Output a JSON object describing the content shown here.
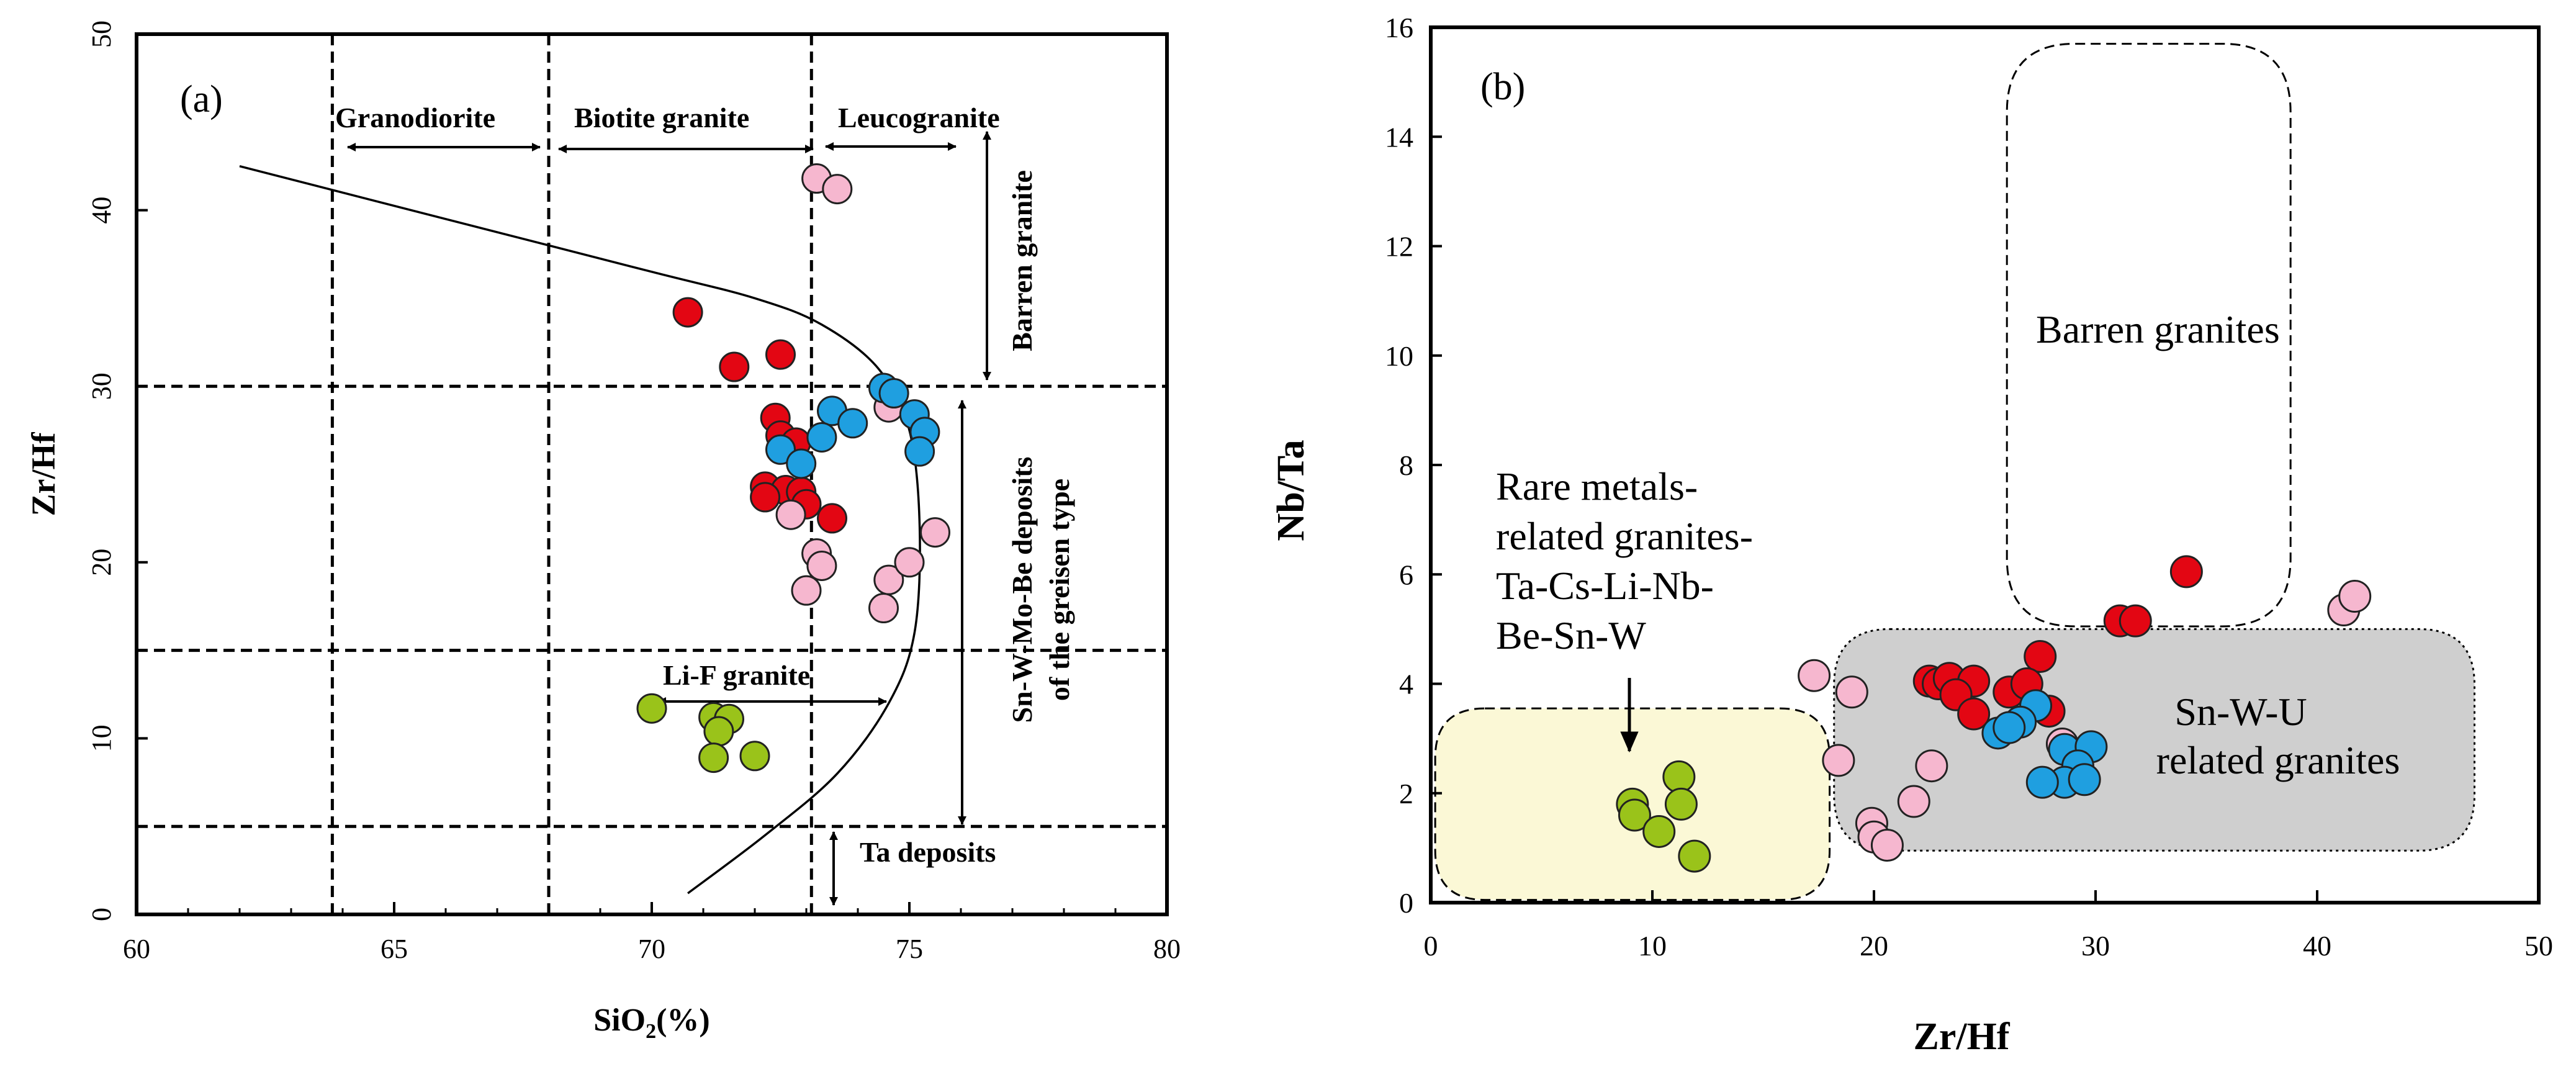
{
  "colors": {
    "red": "#e30613",
    "pink": "#f6b7cf",
    "blue": "#1f9fe0",
    "green": "#9ac31a",
    "shade_gray": "#cfcfcf",
    "shade_yellow": "#fbf8d6",
    "ink": "#000000"
  },
  "chart_data": [
    {
      "panel": "a",
      "type": "scatter",
      "panel_label": "(a)",
      "xlabel_pre": "SiO",
      "xlabel_sub": "2",
      "xlabel_post": "(%)",
      "ylabel": "Zr/Hf",
      "xlim": [
        60,
        80
      ],
      "ylim": [
        0,
        50
      ],
      "xticks": [
        60,
        65,
        70,
        75,
        80
      ],
      "yticks": [
        0,
        10,
        20,
        30,
        40,
        50
      ],
      "vlines": [
        63.8,
        68,
        73.1
      ],
      "hlines": [
        30,
        15,
        5
      ],
      "region_labels": [
        {
          "id": "granodiorite",
          "text": "Granodiorite"
        },
        {
          "id": "biotite",
          "text": "Biotite granite"
        },
        {
          "id": "leuco",
          "text": "Leucogranite"
        },
        {
          "id": "barren",
          "text": "Barren granite"
        },
        {
          "id": "snw1",
          "text": "Sn-W-Mo-Be deposits"
        },
        {
          "id": "snw2",
          "text": "of the greisen type"
        },
        {
          "id": "lif",
          "text": "Li-F granite"
        },
        {
          "id": "ta",
          "text": "Ta deposits"
        }
      ],
      "boundary_curve": [
        [
          62,
          42.5
        ],
        [
          66,
          39.5
        ],
        [
          70,
          36.5
        ],
        [
          72,
          35
        ],
        [
          73.3,
          33.5
        ],
        [
          74.4,
          31
        ],
        [
          75,
          27.5
        ],
        [
          75.2,
          22
        ],
        [
          75.1,
          16
        ],
        [
          74.6,
          12
        ],
        [
          73.6,
          8
        ],
        [
          72.2,
          4.5
        ],
        [
          70.7,
          1.2
        ]
      ],
      "series": [
        {
          "name": "red",
          "points": [
            [
              70.7,
              34.2
            ],
            [
              71.6,
              31.1
            ],
            [
              72.5,
              31.8
            ],
            [
              72.4,
              28.2
            ],
            [
              72.5,
              27.2
            ],
            [
              72.8,
              26.8
            ],
            [
              72.2,
              24.3
            ],
            [
              72.6,
              24.1
            ],
            [
              72.2,
              23.7
            ],
            [
              72.9,
              24
            ],
            [
              73,
              23.3
            ],
            [
              73.5,
              22.5
            ]
          ]
        },
        {
          "name": "pink",
          "points": [
            [
              73.2,
              41.8
            ],
            [
              73.6,
              41.2
            ],
            [
              74.6,
              28.8
            ],
            [
              73.2,
              20.5
            ],
            [
              73.3,
              19.8
            ],
            [
              73,
              18.4
            ],
            [
              74.6,
              19
            ],
            [
              74.5,
              17.4
            ],
            [
              75,
              20
            ],
            [
              75.5,
              21.7
            ],
            [
              72.7,
              22.7
            ]
          ]
        },
        {
          "name": "blue",
          "points": [
            [
              73.5,
              28.6
            ],
            [
              74.5,
              29.9
            ],
            [
              74.7,
              29.6
            ],
            [
              75.1,
              28.4
            ],
            [
              75.3,
              27.4
            ],
            [
              75.2,
              26.3
            ],
            [
              73.9,
              27.9
            ],
            [
              73.3,
              27.1
            ],
            [
              72.5,
              26.4
            ],
            [
              72.9,
              25.6
            ]
          ]
        },
        {
          "name": "green",
          "points": [
            [
              70,
              11.7
            ],
            [
              71.2,
              11.2
            ],
            [
              71.5,
              11.1
            ],
            [
              71.3,
              10.4
            ],
            [
              71.2,
              8.9
            ],
            [
              72,
              9
            ]
          ]
        }
      ]
    },
    {
      "panel": "b",
      "type": "scatter",
      "panel_label": "(b)",
      "xlabel": "Zr/Hf",
      "ylabel": "Nb/Ta",
      "xlim": [
        0,
        50
      ],
      "ylim": [
        0,
        16
      ],
      "xticks": [
        0,
        10,
        20,
        30,
        40,
        50
      ],
      "yticks": [
        0,
        2,
        4,
        6,
        8,
        10,
        12,
        14,
        16
      ],
      "region_labels": [
        {
          "id": "barren",
          "text": "Barren granites"
        },
        {
          "id": "rare1",
          "text": "Rare metals-"
        },
        {
          "id": "rare2",
          "text": "related granites-"
        },
        {
          "id": "rare3",
          "text": "Ta-Cs-Li-Nb-"
        },
        {
          "id": "rare4",
          "text": "Be-Sn-W"
        },
        {
          "id": "snwu1",
          "text": "Sn-W-U"
        },
        {
          "id": "snwu2",
          "text": "related granites"
        }
      ],
      "series": [
        {
          "name": "red",
          "points": [
            [
              34.1,
              6.05
            ],
            [
              31.1,
              5.15
            ],
            [
              31.8,
              5.15
            ],
            [
              27.5,
              4.5
            ],
            [
              22.5,
              4.05
            ],
            [
              22.9,
              4
            ],
            [
              23.4,
              4.1
            ],
            [
              24.5,
              4.05
            ],
            [
              23.7,
              3.8
            ],
            [
              26.1,
              3.85
            ],
            [
              26.9,
              4
            ],
            [
              27.9,
              3.5
            ],
            [
              24.5,
              3.45
            ]
          ]
        },
        {
          "name": "pink",
          "points": [
            [
              17.3,
              4.15
            ],
            [
              19,
              3.85
            ],
            [
              18.4,
              2.6
            ],
            [
              22.6,
              2.5
            ],
            [
              21.8,
              1.85
            ],
            [
              19.9,
              1.45
            ],
            [
              20,
              1.2
            ],
            [
              20.6,
              1.05
            ],
            [
              28.5,
              2.9
            ],
            [
              41.2,
              5.35
            ],
            [
              41.7,
              5.6
            ]
          ]
        },
        {
          "name": "blue",
          "points": [
            [
              27.3,
              3.6
            ],
            [
              26.6,
              3.3
            ],
            [
              25.6,
              3.1
            ],
            [
              26.1,
              3.2
            ],
            [
              28.6,
              2.8
            ],
            [
              29.8,
              2.85
            ],
            [
              29.2,
              2.5
            ],
            [
              28.6,
              2.2
            ],
            [
              27.6,
              2.2
            ],
            [
              29.5,
              2.25
            ]
          ]
        },
        {
          "name": "green",
          "points": [
            [
              9.1,
              1.8
            ],
            [
              11.2,
              2.3
            ],
            [
              9.2,
              1.6
            ],
            [
              11.3,
              1.8
            ],
            [
              10.3,
              1.3
            ],
            [
              11.9,
              0.85
            ]
          ]
        }
      ]
    }
  ]
}
